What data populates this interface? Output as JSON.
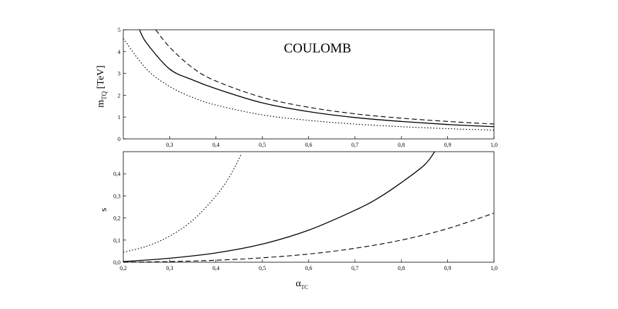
{
  "chart_data": [
    {
      "type": "line",
      "title": "COULOMB",
      "ylabel": "m",
      "ylabel_sub": "TQ",
      "ylabel_unit": " [TeV]",
      "xlim": [
        0.2,
        1.0
      ],
      "ylim": [
        0,
        5
      ],
      "xticks": [
        "0,3",
        "0,4",
        "0,5",
        "0,6",
        "0,7",
        "0,8",
        "0,9",
        "1,0"
      ],
      "xtick_values": [
        0.3,
        0.4,
        0.5,
        0.6,
        0.7,
        0.8,
        0.9,
        1.0
      ],
      "yticks": [
        "0",
        "1",
        "2",
        "3",
        "4",
        "5"
      ],
      "ytick_values": [
        0,
        1,
        2,
        3,
        4,
        5
      ],
      "grid": false,
      "series": [
        {
          "style": "solid",
          "x": [
            0.235,
            0.25,
            0.3,
            0.35,
            0.4,
            0.5,
            0.6,
            0.7,
            0.8,
            0.9,
            1.0
          ],
          "y": [
            5.0,
            4.4,
            3.2,
            2.7,
            2.3,
            1.65,
            1.25,
            0.98,
            0.8,
            0.66,
            0.56
          ]
        },
        {
          "style": "dashed",
          "x": [
            0.27,
            0.3,
            0.35,
            0.4,
            0.5,
            0.6,
            0.7,
            0.8,
            0.9,
            1.0
          ],
          "y": [
            5.0,
            4.2,
            3.25,
            2.65,
            1.9,
            1.45,
            1.15,
            0.95,
            0.8,
            0.68
          ]
        },
        {
          "style": "dotted",
          "x": [
            0.2,
            0.25,
            0.3,
            0.35,
            0.4,
            0.5,
            0.6,
            0.7,
            0.8,
            0.9,
            1.0
          ],
          "y": [
            4.6,
            3.2,
            2.4,
            1.9,
            1.55,
            1.1,
            0.85,
            0.68,
            0.56,
            0.47,
            0.4
          ]
        }
      ]
    },
    {
      "type": "line",
      "title": "",
      "ylabel": "s",
      "xlabel": "α",
      "xlabel_sub": "TC",
      "xlim": [
        0.2,
        1.0
      ],
      "ylim": [
        0,
        0.5
      ],
      "xticks": [
        "0,2",
        "0,3",
        "0,4",
        "0,5",
        "0,6",
        "0,7",
        "0,8",
        "0,9",
        "1,0"
      ],
      "xtick_values": [
        0.2,
        0.3,
        0.4,
        0.5,
        0.6,
        0.7,
        0.8,
        0.9,
        1.0
      ],
      "yticks": [
        "0,0",
        "0,1",
        "0,2",
        "0,3",
        "0,4"
      ],
      "ytick_values": [
        0.0,
        0.1,
        0.2,
        0.3,
        0.4
      ],
      "grid": false,
      "series": [
        {
          "style": "solid",
          "x": [
            0.2,
            0.3,
            0.4,
            0.5,
            0.6,
            0.7,
            0.75,
            0.8,
            0.85,
            0.872
          ],
          "y": [
            0.003,
            0.018,
            0.042,
            0.082,
            0.145,
            0.235,
            0.29,
            0.36,
            0.44,
            0.5
          ]
        },
        {
          "style": "dashed",
          "x": [
            0.2,
            0.3,
            0.4,
            0.5,
            0.6,
            0.7,
            0.8,
            0.9,
            1.0
          ],
          "y": [
            0.0,
            0.003,
            0.009,
            0.02,
            0.037,
            0.063,
            0.1,
            0.152,
            0.222
          ]
        },
        {
          "style": "dotted",
          "x": [
            0.2,
            0.25,
            0.3,
            0.35,
            0.4,
            0.43,
            0.455
          ],
          "y": [
            0.045,
            0.072,
            0.118,
            0.19,
            0.3,
            0.39,
            0.49
          ]
        }
      ]
    }
  ]
}
